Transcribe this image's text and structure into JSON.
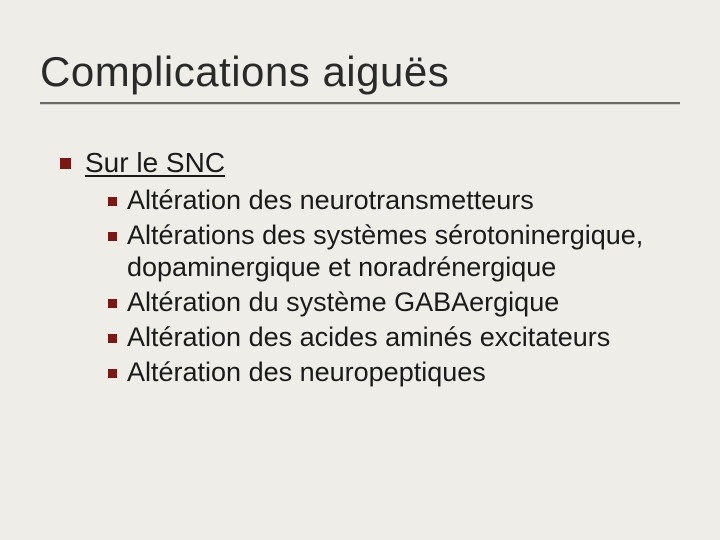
{
  "slide": {
    "title": "Complications aiguës",
    "background_color": "#eeede8",
    "title_color": "#2a2a2a",
    "body_color": "#1a1a1a",
    "bullet_color": "#7a1816",
    "rule_color": "#6a6a6a",
    "title_fontsize": 42,
    "body_fontsize": 28,
    "l1": {
      "text": "Sur le SNC",
      "underline": true,
      "items": [
        {
          "text": "Altération des neurotransmetteurs"
        },
        {
          "text": "Altérations des systèmes sérotoninergique, dopaminergique et noradrénergique"
        },
        {
          "text": "Altération du système GABAergique"
        },
        {
          "text": "Altération des acides aminés excitateurs"
        },
        {
          "text": "Altération des neuropeptiques"
        }
      ]
    }
  }
}
